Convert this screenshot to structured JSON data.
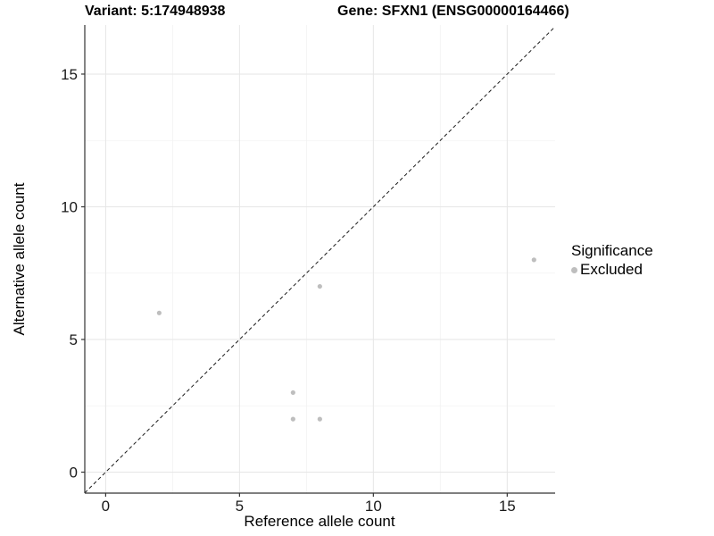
{
  "titles": {
    "variant": "Variant: 5:174948938",
    "gene": "Gene: SFXN1 (ENSG00000164466)"
  },
  "chart_data": {
    "type": "scatter",
    "xlabel": "Reference allele count",
    "ylabel": "Alternative allele count",
    "xlim": [
      -0.78,
      16.79
    ],
    "ylim": [
      -0.79,
      16.85
    ],
    "xticks": [
      0,
      5,
      10,
      15
    ],
    "xtick_labels": [
      "0",
      "5",
      "10",
      "15"
    ],
    "yticks": [
      0,
      5,
      10,
      15
    ],
    "ytick_labels": [
      "0",
      "5",
      "10",
      "15"
    ],
    "minor_xticks": [
      2.5,
      7.5,
      12.5
    ],
    "minor_yticks": [
      2.5,
      7.5,
      12.5
    ],
    "grid": true,
    "abline": {
      "slope": 1,
      "intercept": 0,
      "style": "dashed"
    },
    "series": [
      {
        "name": "Excluded",
        "color": "#bebebe",
        "points": [
          [
            2,
            6
          ],
          [
            7,
            2
          ],
          [
            7,
            3
          ],
          [
            8,
            2
          ],
          [
            8,
            7
          ],
          [
            16,
            8
          ]
        ]
      }
    ],
    "legend": {
      "title": "Significance",
      "position": "right",
      "items": [
        {
          "label": "Excluded",
          "color": "#bebebe"
        }
      ]
    }
  },
  "colors": {
    "background": "#ffffff",
    "grid_major": "#e6e6e6",
    "grid_minor": "#f2f2f2",
    "axis_line": "#333333",
    "tick_text": "#1a1a1a",
    "abline": "#1a1a1a",
    "point": "#bebebe"
  }
}
